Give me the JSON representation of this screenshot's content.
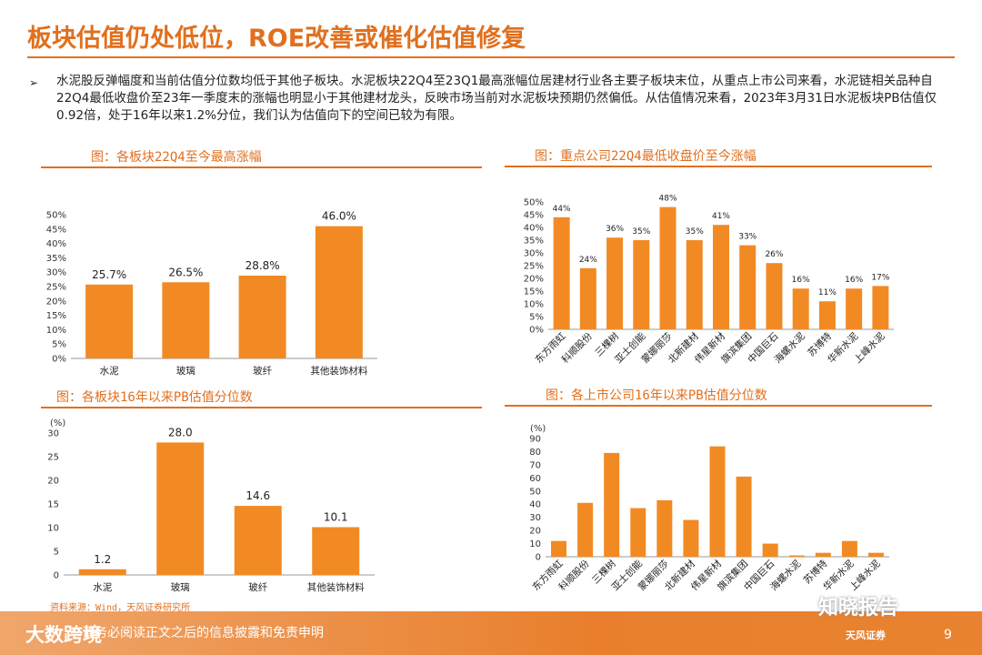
{
  "page": {
    "title": "板块估值仍处低位，ROE改善或催化估值修复",
    "bullet": "➢",
    "intro": "水泥股反弹幅度和当前估值分位数均低于其他子板块。水泥板块22Q4至23Q1最高涨幅位居建材行业各主要子板块末位，从重点上市公司来看，水泥链相关品种自22Q4最低收盘价至23年一季度末的涨幅也明显小于其他建材龙头，反映市场当前对水泥板块预期仍然偏低。从估值情况来看，2023年3月31日水泥板块PB估值仅0.92倍，处于16年以来1.2%分位，我们认为估值向下的空间已较为有限。",
    "source": "资料来源：Wind，天风证券研究所",
    "footer_text": "请务必阅读正文之后的信息披露和免责申明",
    "footer_logo": "大数跨境",
    "watermark": "知晓报告",
    "brand": "天风证券",
    "page_number": "9",
    "accent_color": "#e0701f",
    "bar_color": "#f28a24"
  },
  "chart_data": [
    {
      "id": "c1",
      "type": "bar",
      "title": "图：各板块22Q4至今最高涨幅",
      "categories": [
        "水泥",
        "玻璃",
        "玻纤",
        "其他装饰材料"
      ],
      "values": [
        25.7,
        26.5,
        28.8,
        46.0
      ],
      "value_labels": [
        "25.7%",
        "26.5%",
        "28.8%",
        "46.0%"
      ],
      "ylim": [
        0,
        50
      ],
      "yticks": [
        "0%",
        "5%",
        "10%",
        "15%",
        "20%",
        "25%",
        "30%",
        "35%",
        "40%",
        "45%",
        "50%"
      ],
      "ylabel": "",
      "xlabel": ""
    },
    {
      "id": "c2",
      "type": "bar",
      "title": "图：重点公司22Q4最低收盘价至今涨幅",
      "categories": [
        "东方雨虹",
        "科顺股份",
        "三棵树",
        "亚士创能",
        "蒙娜丽莎",
        "北新建材",
        "伟星新材",
        "旗滨集团",
        "中国巨石",
        "海螺水泥",
        "苏博特",
        "华新水泥",
        "上峰水泥"
      ],
      "values": [
        44,
        24,
        36,
        35,
        48,
        35,
        41,
        33,
        26,
        16,
        11,
        16,
        17
      ],
      "value_labels": [
        "44%",
        "24%",
        "36%",
        "35%",
        "48%",
        "35%",
        "41%",
        "33%",
        "26%",
        "16%",
        "11%",
        "16%",
        "17%"
      ],
      "ylim": [
        0,
        50
      ],
      "yticks": [
        "0%",
        "5%",
        "10%",
        "15%",
        "20%",
        "25%",
        "30%",
        "35%",
        "40%",
        "45%",
        "50%"
      ],
      "ylabel": "",
      "xlabel": ""
    },
    {
      "id": "c3",
      "type": "bar",
      "title": "图：各板块16年以来PB估值分位数",
      "categories": [
        "水泥",
        "玻璃",
        "玻纤",
        "其他装饰材料"
      ],
      "values": [
        1.2,
        28.0,
        14.6,
        10.1
      ],
      "value_labels": [
        "1.2",
        "28.0",
        "14.6",
        "10.1"
      ],
      "ylim": [
        0,
        30
      ],
      "yticks": [
        "0",
        "5",
        "10",
        "15",
        "20",
        "25",
        "30"
      ],
      "ylabel": "(%)",
      "xlabel": ""
    },
    {
      "id": "c4",
      "type": "bar",
      "title": "图：各上市公司16年以来PB估值分位数",
      "categories": [
        "东方雨虹",
        "科顺股份",
        "三棵树",
        "亚士创能",
        "蒙娜丽莎",
        "北新建材",
        "伟星新材",
        "旗滨集团",
        "中国巨石",
        "海螺水泥",
        "苏博特",
        "华新水泥",
        "上峰水泥"
      ],
      "values": [
        12,
        41,
        79,
        37,
        43,
        28,
        84,
        61,
        10,
        1,
        3,
        12,
        3
      ],
      "value_labels": [],
      "ylim": [
        0,
        90
      ],
      "yticks": [
        "0",
        "10",
        "20",
        "30",
        "40",
        "50",
        "60",
        "70",
        "80",
        "90"
      ],
      "ylabel": "(%)",
      "xlabel": ""
    }
  ]
}
